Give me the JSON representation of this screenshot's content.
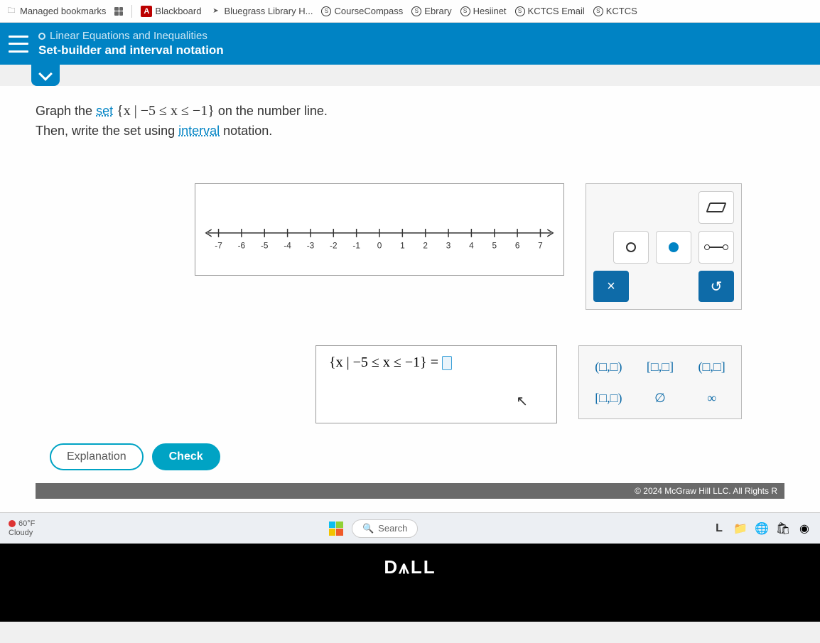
{
  "bookmarks": {
    "managed": "Managed bookmarks",
    "items": [
      {
        "label": "Blackboard"
      },
      {
        "label": "Bluegrass Library H..."
      },
      {
        "label": "CourseCompass"
      },
      {
        "label": "Ebrary"
      },
      {
        "label": "Hesiinet"
      },
      {
        "label": "KCTCS Email"
      },
      {
        "label": "KCTCS"
      }
    ]
  },
  "header": {
    "chapter": "Linear Equations and Inequalities",
    "topic": "Set-builder and interval notation"
  },
  "prompt": {
    "line1_a": "Graph the ",
    "set_word": "set",
    "set_expr": " {x | −5 ≤ x ≤ −1} ",
    "line1_b": "on the number line.",
    "line2_a": "Then, write the set using ",
    "interval_word": "interval",
    "line2_b": " notation."
  },
  "numberline": {
    "min": -7,
    "max": 7,
    "ticks": [
      "-7",
      "-6",
      "-5",
      "-4",
      "-3",
      "-2",
      "-1",
      "0",
      "1",
      "2",
      "3",
      "4",
      "5",
      "6",
      "7"
    ],
    "axis_color": "#333",
    "tick_fontsize": 12,
    "box_border": "#999999",
    "box_bg": "#ffffff"
  },
  "palette1": {
    "eraser": "eraser",
    "open_pt": "open-point",
    "closed_pt": "closed-point",
    "segment": "segment",
    "clear": "×",
    "reset": "↺"
  },
  "answer": {
    "expr": "{x | −5 ≤ x ≤ −1} = "
  },
  "palette2": {
    "s1": "(□,□)",
    "s2": "[□,□]",
    "s3": "(□,□]",
    "s4": "[□,□)",
    "s5": "∅",
    "s6": "∞"
  },
  "buttons": {
    "explanation": "Explanation",
    "check": "Check"
  },
  "footer": {
    "copyright": "© 2024 McGraw Hill LLC. All Rights R"
  },
  "taskbar": {
    "temp": "60°F",
    "cond": "Cloudy",
    "search": "Search"
  },
  "brand": "D⩚LL",
  "colors": {
    "header_bg": "#0083c4",
    "accent": "#00a3c4",
    "action_btn": "#0e6ba8"
  }
}
